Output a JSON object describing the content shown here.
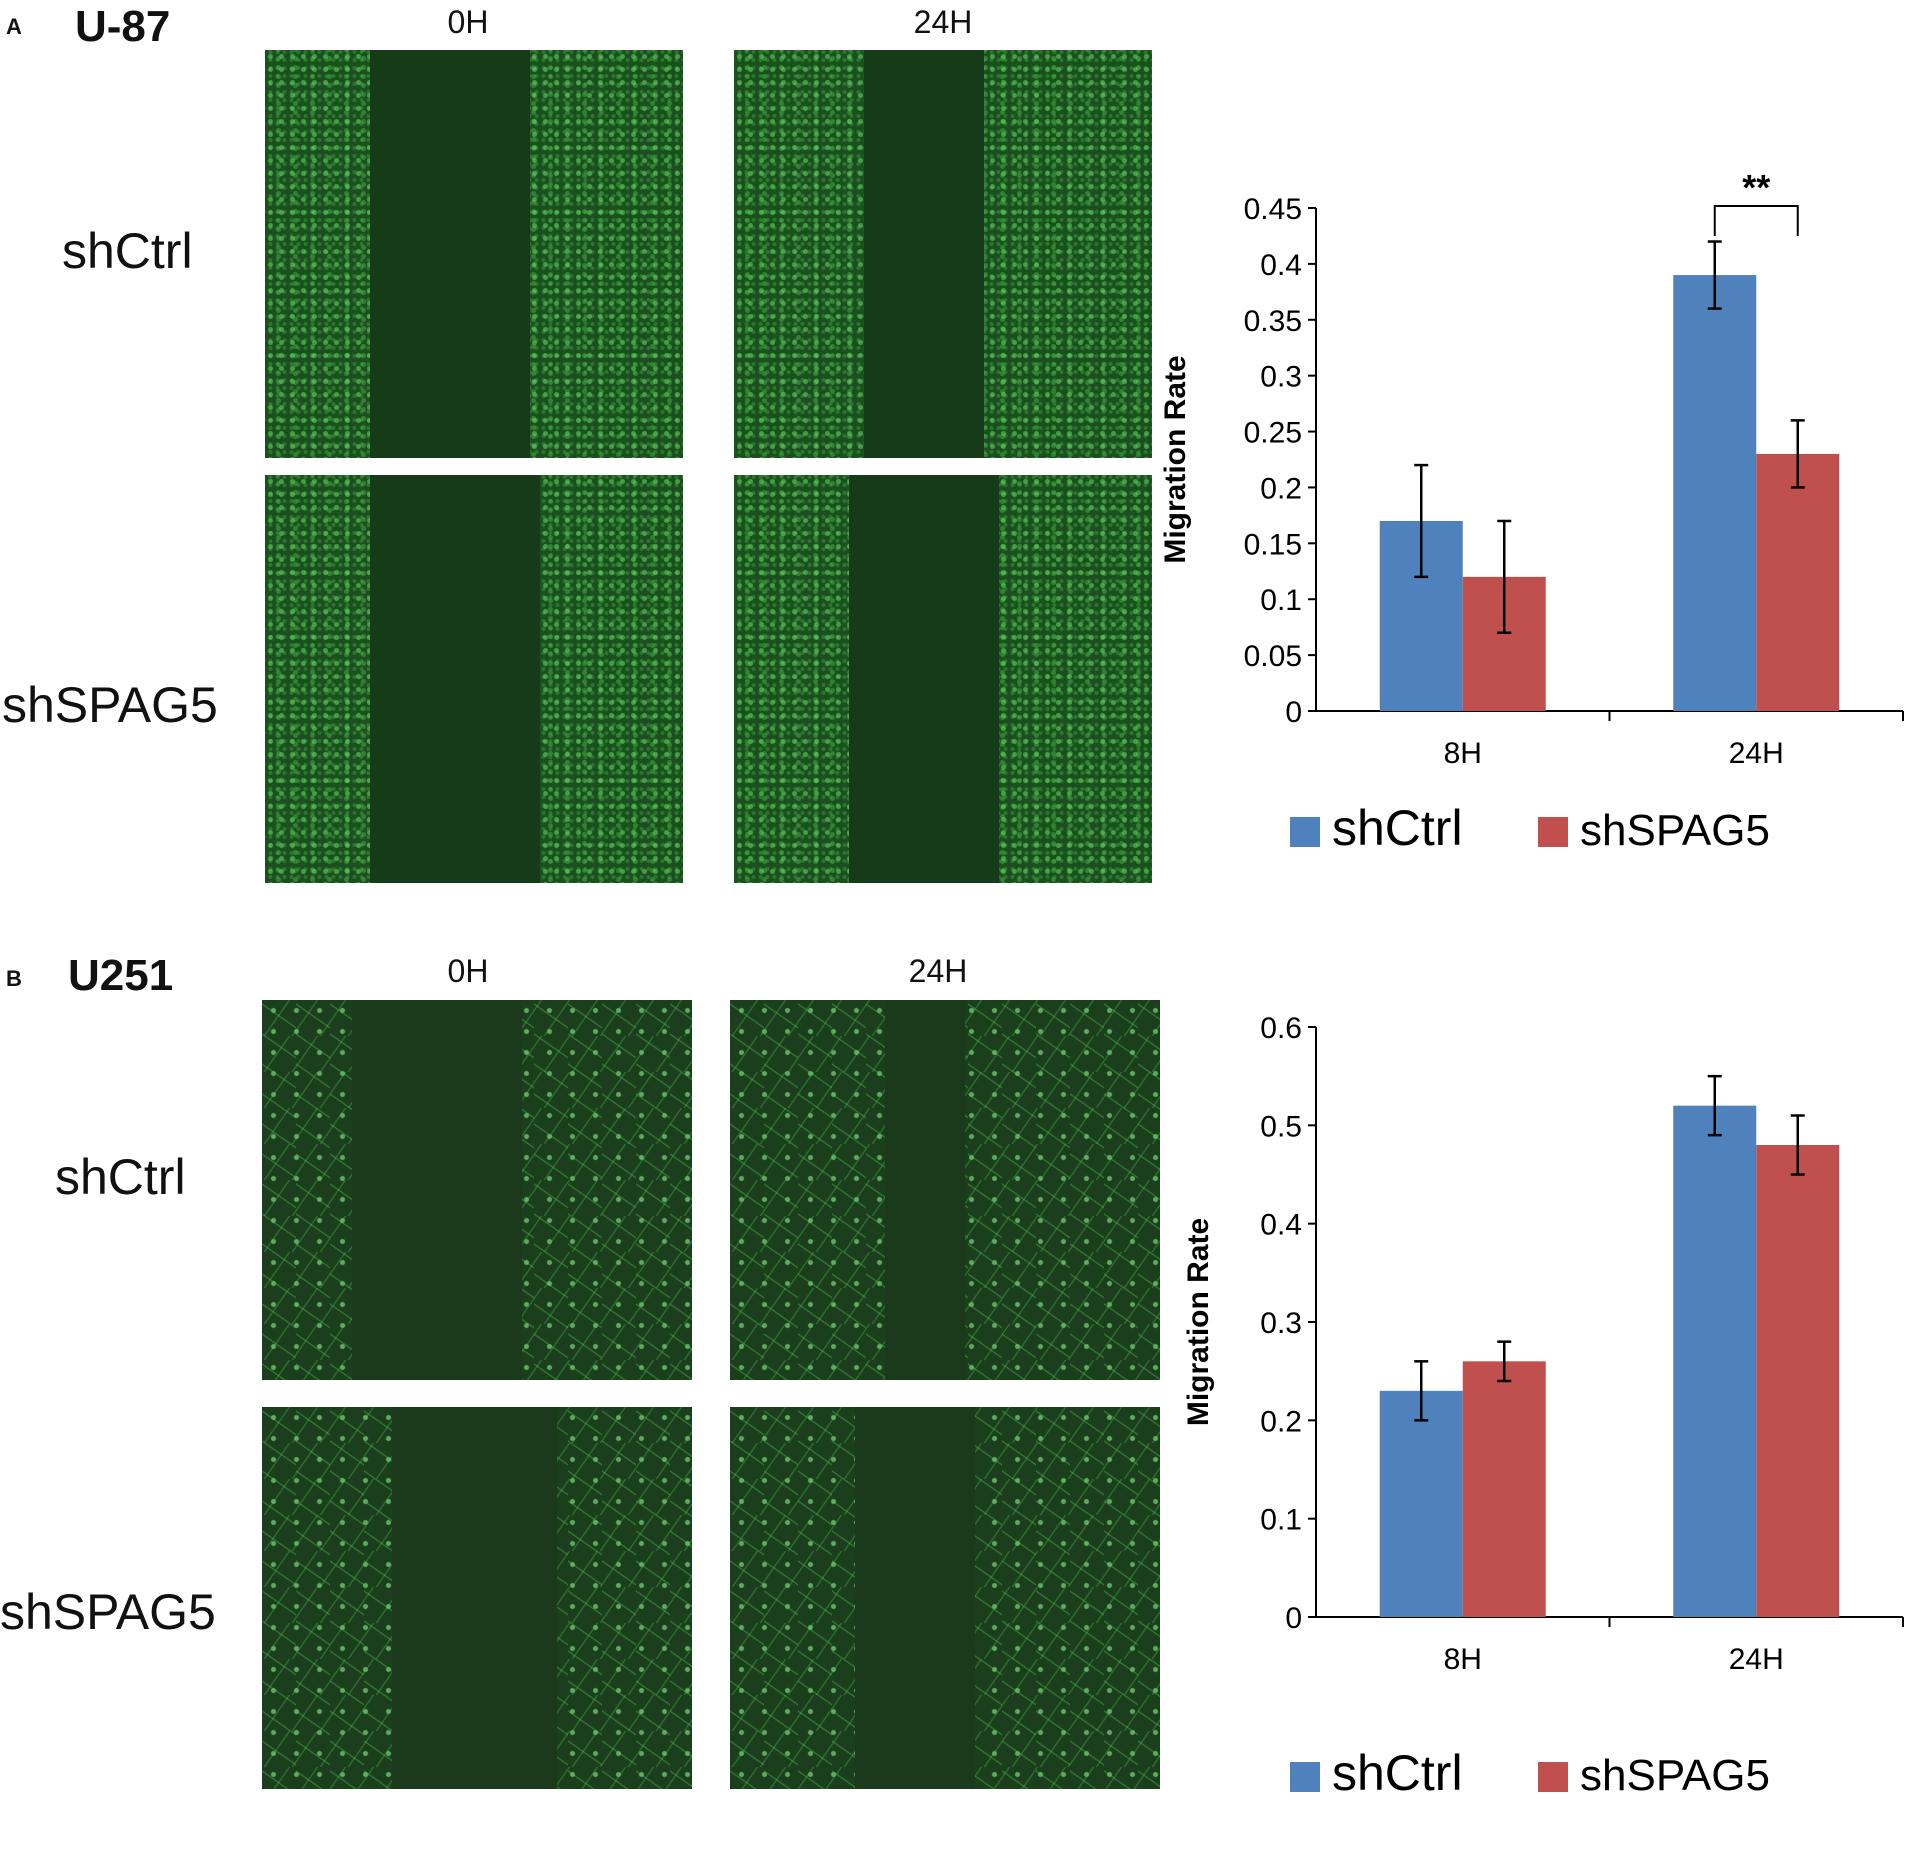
{
  "panels": [
    {
      "letter": "A",
      "cell_line": "U-87",
      "time_labels": [
        "0H",
        "24H"
      ],
      "row_labels": [
        "shCtrl",
        "shSPAG5"
      ],
      "chart": {
        "ylabel": "Migration Rate",
        "yticks": [
          "0",
          "0.05",
          "0.1",
          "0.15",
          "0.2",
          "0.25",
          "0.3",
          "0.35",
          "0.4",
          "0.45"
        ],
        "categories": [
          "8H",
          "24H"
        ],
        "significance": "**",
        "legend": [
          "shCtrl",
          "shSPAG5"
        ]
      }
    },
    {
      "letter": "B",
      "cell_line": "U251",
      "time_labels": [
        "0H",
        "24H"
      ],
      "row_labels": [
        "shCtrl",
        "shSPAG5"
      ],
      "chart": {
        "ylabel": "Migration Rate",
        "yticks": [
          "0",
          "0.1",
          "0.2",
          "0.3",
          "0.4",
          "0.5",
          "0.6"
        ],
        "categories": [
          "8H",
          "24H"
        ],
        "legend": [
          "shCtrl",
          "shSPAG5"
        ]
      }
    }
  ],
  "colors": {
    "shCtrl": "#4f81bd",
    "shSPAG5": "#c0504d",
    "cells": "#3fbf4a"
  },
  "chart_data": [
    {
      "type": "bar",
      "ylabel": "Migration Rate",
      "categories": [
        "8H",
        "24H"
      ],
      "ylim": [
        0,
        0.45
      ],
      "series": [
        {
          "name": "shCtrl",
          "values": [
            0.17,
            0.39
          ],
          "errors": [
            0.05,
            0.03
          ]
        },
        {
          "name": "shSPAG5",
          "values": [
            0.12,
            0.23
          ],
          "errors": [
            0.05,
            0.03
          ]
        }
      ],
      "annotations": [
        {
          "text": "**",
          "category": "24H"
        }
      ],
      "legend": "bottom",
      "grid": false
    },
    {
      "type": "bar",
      "ylabel": "Migration Rate",
      "categories": [
        "8H",
        "24H"
      ],
      "ylim": [
        0,
        0.6
      ],
      "series": [
        {
          "name": "shCtrl",
          "values": [
            0.23,
            0.52
          ],
          "errors": [
            0.03,
            0.03
          ]
        },
        {
          "name": "shSPAG5",
          "values": [
            0.26,
            0.48
          ],
          "errors": [
            0.02,
            0.03
          ]
        }
      ],
      "legend": "bottom",
      "grid": false
    }
  ]
}
